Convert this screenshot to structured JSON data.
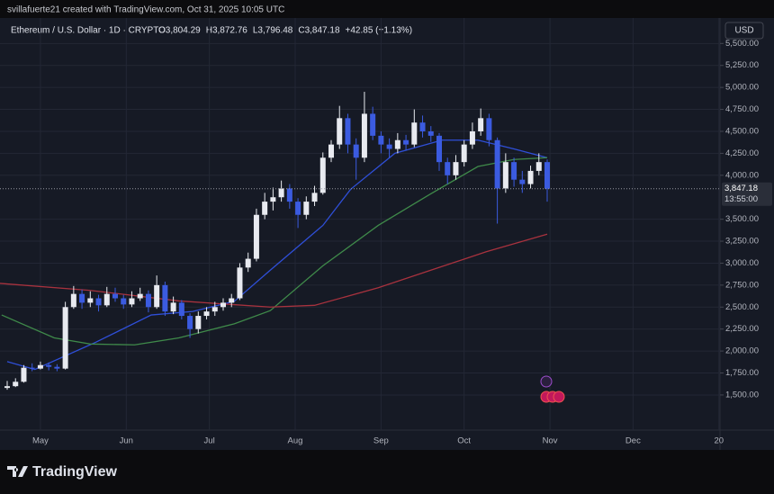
{
  "header": {
    "credit": "svillafuerte21 created with TradingView.com, Oct 31, 2025 10:05 UTC",
    "symbol": "Ethereum / U.S. Dollar · 1D · CRYPTO",
    "ohlc": [
      "O3,804.29",
      "H3,872.76",
      "L3,796.48",
      "C3,847.18",
      "+42.85 (+1.13%)"
    ],
    "currency": "USD"
  },
  "footer": {
    "brand": "TradingView"
  },
  "chart_data": {
    "type": "candlestick",
    "up_color": "#e8eaf0",
    "down_color": "#3b5be0",
    "grid": true,
    "x": [
      -12,
      -9,
      -6,
      -3,
      0,
      3,
      6,
      9,
      12,
      15,
      18,
      21,
      24,
      27,
      30,
      33,
      36,
      39,
      42,
      45,
      48,
      51,
      54,
      57,
      60,
      63,
      66,
      69,
      72,
      75,
      78,
      81,
      84,
      87,
      90,
      93,
      96,
      99,
      102,
      105,
      108,
      111,
      114,
      117,
      120,
      123,
      126,
      129,
      132,
      135,
      138,
      141,
      144,
      147,
      150,
      153,
      156,
      159,
      162,
      165,
      168,
      171,
      174,
      177,
      180,
      183
    ],
    "open": [
      1580,
      1600,
      1650,
      1810,
      1800,
      1840,
      1820,
      1800,
      2500,
      2650,
      2550,
      2600,
      2520,
      2650,
      2600,
      2530,
      2600,
      2650,
      2500,
      2750,
      2450,
      2550,
      2400,
      2250,
      2400,
      2450,
      2500,
      2550,
      2600,
      2950,
      3050,
      3550,
      3700,
      3750,
      3850,
      3700,
      3550,
      3700,
      3800,
      4200,
      4350,
      4650,
      4350,
      4200,
      4700,
      4450,
      4350,
      4300,
      4400,
      4350,
      4600,
      4500,
      4450,
      4150,
      4000,
      4150,
      4350,
      4500,
      4650,
      4400,
      3850,
      4150,
      3950,
      3900,
      4050,
      4150
    ],
    "high": [
      1660,
      1690,
      1840,
      1860,
      1880,
      1870,
      1850,
      2560,
      2740,
      2700,
      2680,
      2640,
      2730,
      2720,
      2640,
      2680,
      2720,
      2690,
      2860,
      2790,
      2620,
      2580,
      2430,
      2450,
      2500,
      2560,
      2600,
      2650,
      3000,
      3120,
      3620,
      3800,
      3860,
      3940,
      3900,
      3740,
      3760,
      3880,
      4260,
      4400,
      4790,
      4700,
      4420,
      4950,
      4780,
      4500,
      4420,
      4480,
      4460,
      4750,
      4680,
      4560,
      4480,
      4200,
      4230,
      4400,
      4600,
      4760,
      4700,
      4430,
      4250,
      4200,
      4050,
      4110,
      4250,
      4180
    ],
    "low": [
      1560,
      1590,
      1640,
      1770,
      1790,
      1780,
      1770,
      1790,
      2480,
      2480,
      2500,
      2450,
      2500,
      2560,
      2480,
      2500,
      2570,
      2440,
      2480,
      2400,
      2420,
      2360,
      2150,
      2200,
      2360,
      2400,
      2460,
      2500,
      2580,
      2900,
      3020,
      3500,
      3600,
      3700,
      3620,
      3400,
      3500,
      3650,
      3780,
      4150,
      4300,
      4250,
      3950,
      4150,
      4400,
      4250,
      4200,
      4250,
      4280,
      4320,
      4430,
      4380,
      4050,
      3900,
      3950,
      4100,
      4300,
      4450,
      4330,
      3450,
      3800,
      3870,
      3800,
      3850,
      4000,
      3700
    ],
    "close": [
      1600,
      1650,
      1810,
      1800,
      1840,
      1820,
      1800,
      2500,
      2650,
      2550,
      2600,
      2520,
      2650,
      2600,
      2530,
      2600,
      2650,
      2500,
      2750,
      2450,
      2550,
      2400,
      2250,
      2400,
      2450,
      2500,
      2550,
      2600,
      2950,
      3050,
      3550,
      3700,
      3750,
      3850,
      3700,
      3550,
      3700,
      3800,
      4200,
      4350,
      4650,
      4350,
      4200,
      4700,
      4450,
      4350,
      4300,
      4400,
      4350,
      4600,
      4500,
      4450,
      4150,
      4000,
      4150,
      4350,
      4500,
      4650,
      4400,
      3850,
      4150,
      3950,
      3900,
      4050,
      4150,
      3847.18
    ],
    "lines": [
      {
        "color": "#2f4fd8",
        "x": [
          -12,
          -2,
          20,
          40,
          55,
          70,
          83,
          102,
          112,
          128,
          145,
          158,
          171,
          183
        ],
        "values": [
          1880,
          1790,
          2100,
          2410,
          2450,
          2565,
          2920,
          3430,
          3840,
          4250,
          4400,
          4400,
          4300,
          4200
        ]
      },
      {
        "color": "#3f8a4a",
        "x": [
          -14,
          5,
          18,
          34,
          50,
          70,
          83,
          102,
          122,
          141,
          158,
          171,
          183
        ],
        "values": [
          2410,
          2150,
          2080,
          2070,
          2150,
          2310,
          2460,
          2970,
          3430,
          3790,
          4100,
          4180,
          4200
        ]
      },
      {
        "color": "#a8323e",
        "x": [
          -14.6,
          18,
          50,
          83,
          99,
          122,
          141,
          161,
          183
        ],
        "values": [
          2770,
          2690,
          2570,
          2500,
          2520,
          2720,
          2920,
          3130,
          3330
        ]
      }
    ],
    "last_price": {
      "value": 3847.18,
      "label": "3,847.18"
    },
    "countdown": "13:55:00",
    "xlim": [
      -14.6,
      245.4
    ],
    "xticks": [
      {
        "value": 0,
        "label": "May"
      },
      {
        "value": 31,
        "label": "Jun"
      },
      {
        "value": 61,
        "label": "Jul"
      },
      {
        "value": 92,
        "label": "Aug"
      },
      {
        "value": 123,
        "label": "Sep"
      },
      {
        "value": 153,
        "label": "Oct"
      },
      {
        "value": 184,
        "label": "Nov"
      },
      {
        "value": 214,
        "label": "Dec"
      },
      {
        "value": 245,
        "label": "20"
      }
    ],
    "ylim": [
      1100,
      5790
    ],
    "yticks": [
      {
        "value": 1500,
        "label": "1,500.00"
      },
      {
        "value": 1750,
        "label": "1,750.00"
      },
      {
        "value": 2000,
        "label": "2,000.00"
      },
      {
        "value": 2250,
        "label": "2,250.00"
      },
      {
        "value": 2500,
        "label": "2,500.00"
      },
      {
        "value": 2750,
        "label": "2,750.00"
      },
      {
        "value": 3000,
        "label": "3,000.00"
      },
      {
        "value": 3250,
        "label": "3,250.00"
      },
      {
        "value": 3500,
        "label": "3,500.00"
      },
      {
        "value": 4000,
        "label": "4,000.00"
      },
      {
        "value": 4250,
        "label": "4,250.00"
      },
      {
        "value": 4500,
        "label": "4,500.00"
      },
      {
        "value": 4750,
        "label": "4,750.00"
      },
      {
        "value": 5000,
        "label": "5,000.00"
      },
      {
        "value": 5250,
        "label": "5,250.00"
      },
      {
        "value": 5500,
        "label": "5,500.00"
      }
    ]
  }
}
